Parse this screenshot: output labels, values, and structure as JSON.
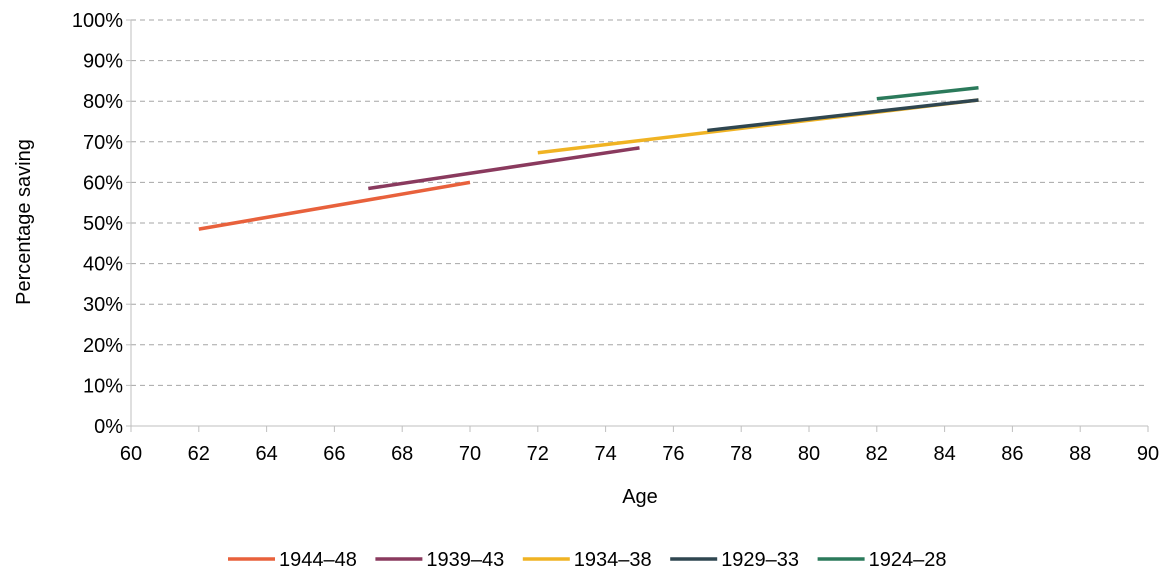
{
  "chart_data": {
    "type": "line",
    "xlabel": "Age",
    "ylabel": "Percentage saving",
    "xlim": [
      60,
      90
    ],
    "ylim": [
      0,
      100
    ],
    "x_ticks": [
      "60",
      "62",
      "64",
      "66",
      "68",
      "70",
      "72",
      "74",
      "76",
      "78",
      "80",
      "82",
      "84",
      "86",
      "88",
      "90"
    ],
    "y_ticks": [
      "0%",
      "10%",
      "20%",
      "30%",
      "40%",
      "50%",
      "60%",
      "70%",
      "80%",
      "90%",
      "100%"
    ],
    "grid": "horizontal dashed",
    "legend_position": "bottom",
    "series": [
      {
        "name": "1944–48",
        "color": "#e8613c",
        "x": [
          62,
          70
        ],
        "y": [
          48.5,
          60.0
        ]
      },
      {
        "name": "1939–43",
        "color": "#8a3a5e",
        "x": [
          67,
          75
        ],
        "y": [
          58.5,
          68.5
        ]
      },
      {
        "name": "1934–38",
        "color": "#f0b323",
        "x": [
          72,
          85
        ],
        "y": [
          67.3,
          80.3
        ]
      },
      {
        "name": "1929–33",
        "color": "#2f4650",
        "x": [
          77,
          85
        ],
        "y": [
          72.8,
          80.3
        ]
      },
      {
        "name": "1924–28",
        "color": "#2b7a5b",
        "x": [
          82,
          85
        ],
        "y": [
          80.6,
          83.3
        ]
      }
    ]
  }
}
